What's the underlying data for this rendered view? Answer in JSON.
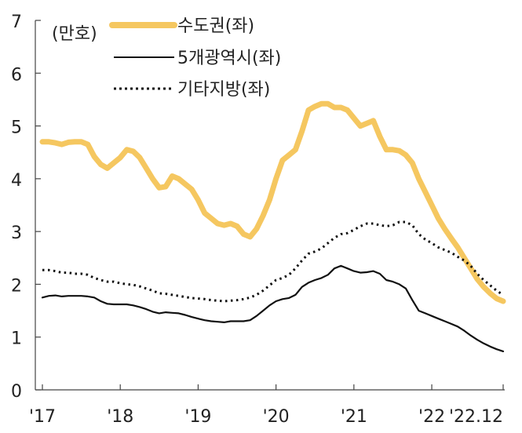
{
  "chart_data": {
    "type": "line",
    "unit_label": "(만호)",
    "ylim": [
      0,
      7
    ],
    "yticks": [
      0,
      1,
      2,
      3,
      4,
      5,
      6,
      7
    ],
    "x_tick_labels": [
      {
        "label": "'17",
        "t": 0
      },
      {
        "label": "'18",
        "t": 12
      },
      {
        "label": "'19",
        "t": 24
      },
      {
        "label": "'20",
        "t": 36
      },
      {
        "label": "'21",
        "t": 48
      },
      {
        "label": "'22",
        "t": 60
      },
      {
        "label": "'22.12",
        "t": 71
      }
    ],
    "x_range": [
      0,
      71
    ],
    "x_note": "monthly observations, Jan 2017 to Dec 2022",
    "legend_position": "top-left",
    "grid": false,
    "series": [
      {
        "name": "수도권(좌)",
        "color": "#F5C760",
        "style": "solid-thick",
        "values": [
          4.7,
          4.7,
          4.68,
          4.65,
          4.69,
          4.7,
          4.7,
          4.65,
          4.42,
          4.27,
          4.2,
          4.3,
          4.4,
          4.55,
          4.52,
          4.4,
          4.2,
          4.0,
          3.83,
          3.85,
          4.05,
          4.0,
          3.9,
          3.8,
          3.6,
          3.35,
          3.25,
          3.15,
          3.12,
          3.15,
          3.1,
          2.95,
          2.9,
          3.05,
          3.3,
          3.6,
          4.0,
          4.35,
          4.45,
          4.55,
          4.9,
          5.3,
          5.37,
          5.42,
          5.42,
          5.35,
          5.35,
          5.3,
          5.15,
          5.0,
          5.05,
          5.1,
          4.8,
          4.55,
          4.55,
          4.53,
          4.45,
          4.3,
          4.0,
          3.75,
          3.5,
          3.25,
          3.05,
          2.87,
          2.7,
          2.5,
          2.3,
          2.1,
          1.95,
          1.83,
          1.73,
          1.68
        ]
      },
      {
        "name": "5개광역시(좌)",
        "color": "#111111",
        "style": "solid-thin",
        "values": [
          1.75,
          1.78,
          1.79,
          1.77,
          1.78,
          1.78,
          1.78,
          1.77,
          1.75,
          1.68,
          1.63,
          1.62,
          1.62,
          1.62,
          1.6,
          1.57,
          1.53,
          1.48,
          1.45,
          1.47,
          1.46,
          1.45,
          1.42,
          1.38,
          1.35,
          1.32,
          1.3,
          1.29,
          1.28,
          1.3,
          1.3,
          1.3,
          1.32,
          1.4,
          1.5,
          1.6,
          1.68,
          1.72,
          1.74,
          1.8,
          1.95,
          2.03,
          2.08,
          2.12,
          2.18,
          2.3,
          2.35,
          2.3,
          2.25,
          2.22,
          2.23,
          2.25,
          2.2,
          2.08,
          2.05,
          2.0,
          1.92,
          1.7,
          1.5,
          1.45,
          1.4,
          1.35,
          1.3,
          1.25,
          1.2,
          1.12,
          1.03,
          0.95,
          0.88,
          0.82,
          0.77,
          0.73
        ]
      },
      {
        "name": "기타지방(좌)",
        "color": "#111111",
        "style": "dotted",
        "values": [
          2.27,
          2.27,
          2.25,
          2.22,
          2.22,
          2.2,
          2.2,
          2.18,
          2.12,
          2.08,
          2.05,
          2.05,
          2.02,
          2.0,
          1.99,
          1.96,
          1.92,
          1.88,
          1.83,
          1.82,
          1.8,
          1.78,
          1.76,
          1.74,
          1.73,
          1.72,
          1.7,
          1.69,
          1.68,
          1.69,
          1.7,
          1.72,
          1.75,
          1.8,
          1.88,
          1.98,
          2.08,
          2.12,
          2.18,
          2.3,
          2.45,
          2.58,
          2.62,
          2.68,
          2.78,
          2.88,
          2.95,
          2.97,
          3.03,
          3.1,
          3.15,
          3.15,
          3.12,
          3.1,
          3.12,
          3.18,
          3.18,
          3.12,
          2.95,
          2.85,
          2.78,
          2.7,
          2.65,
          2.6,
          2.52,
          2.45,
          2.35,
          2.2,
          2.08,
          1.98,
          1.88,
          1.8
        ]
      }
    ]
  }
}
